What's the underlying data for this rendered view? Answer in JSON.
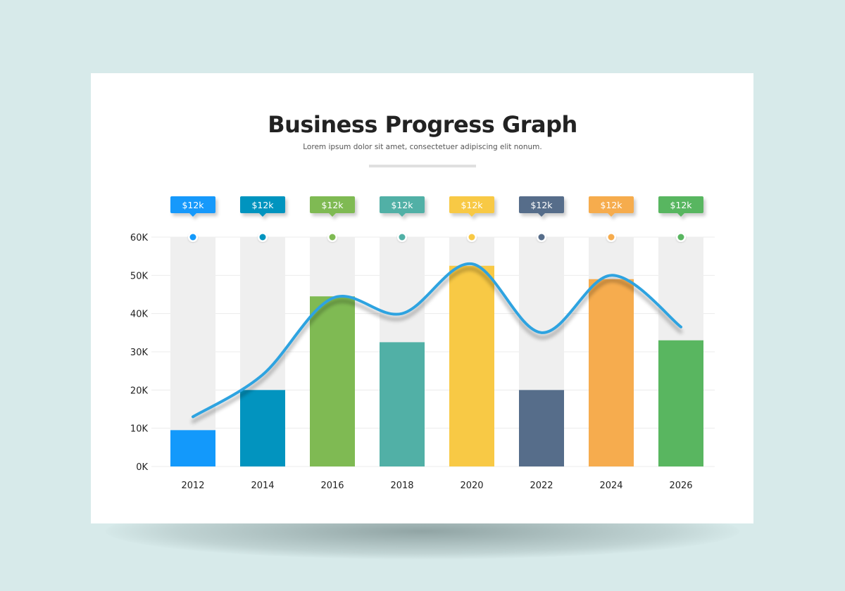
{
  "chart_data": {
    "type": "bar",
    "title": "Business Progress Graph",
    "subtitle": "Lorem ipsum dolor sit amet, consectetuer adipiscing elit nonum.",
    "categories": [
      "2012",
      "2014",
      "2016",
      "2018",
      "2020",
      "2022",
      "2024",
      "2026"
    ],
    "bar_values": [
      9.5,
      20,
      44.5,
      32.5,
      52.5,
      20,
      49,
      33
    ],
    "line_values": [
      13,
      24,
      44,
      40,
      53,
      35,
      50,
      36.5
    ],
    "value_unit": "K",
    "ylim": [
      0,
      60
    ],
    "yticks": [
      "0K",
      "10K",
      "20K",
      "30K",
      "40K",
      "50K",
      "60K"
    ],
    "grid": true,
    "tags": [
      "$12k",
      "$12k",
      "$12k",
      "$12k",
      "$12k",
      "$12k",
      "$12k",
      "$12k"
    ],
    "colors": [
      "#1399fb",
      "#0294bf",
      "#7fba53",
      "#51b0a6",
      "#f8c945",
      "#566d8a",
      "#f6ac4e",
      "#59b660"
    ],
    "line_color": "#2ea3e0",
    "track_color": "#efefef"
  }
}
